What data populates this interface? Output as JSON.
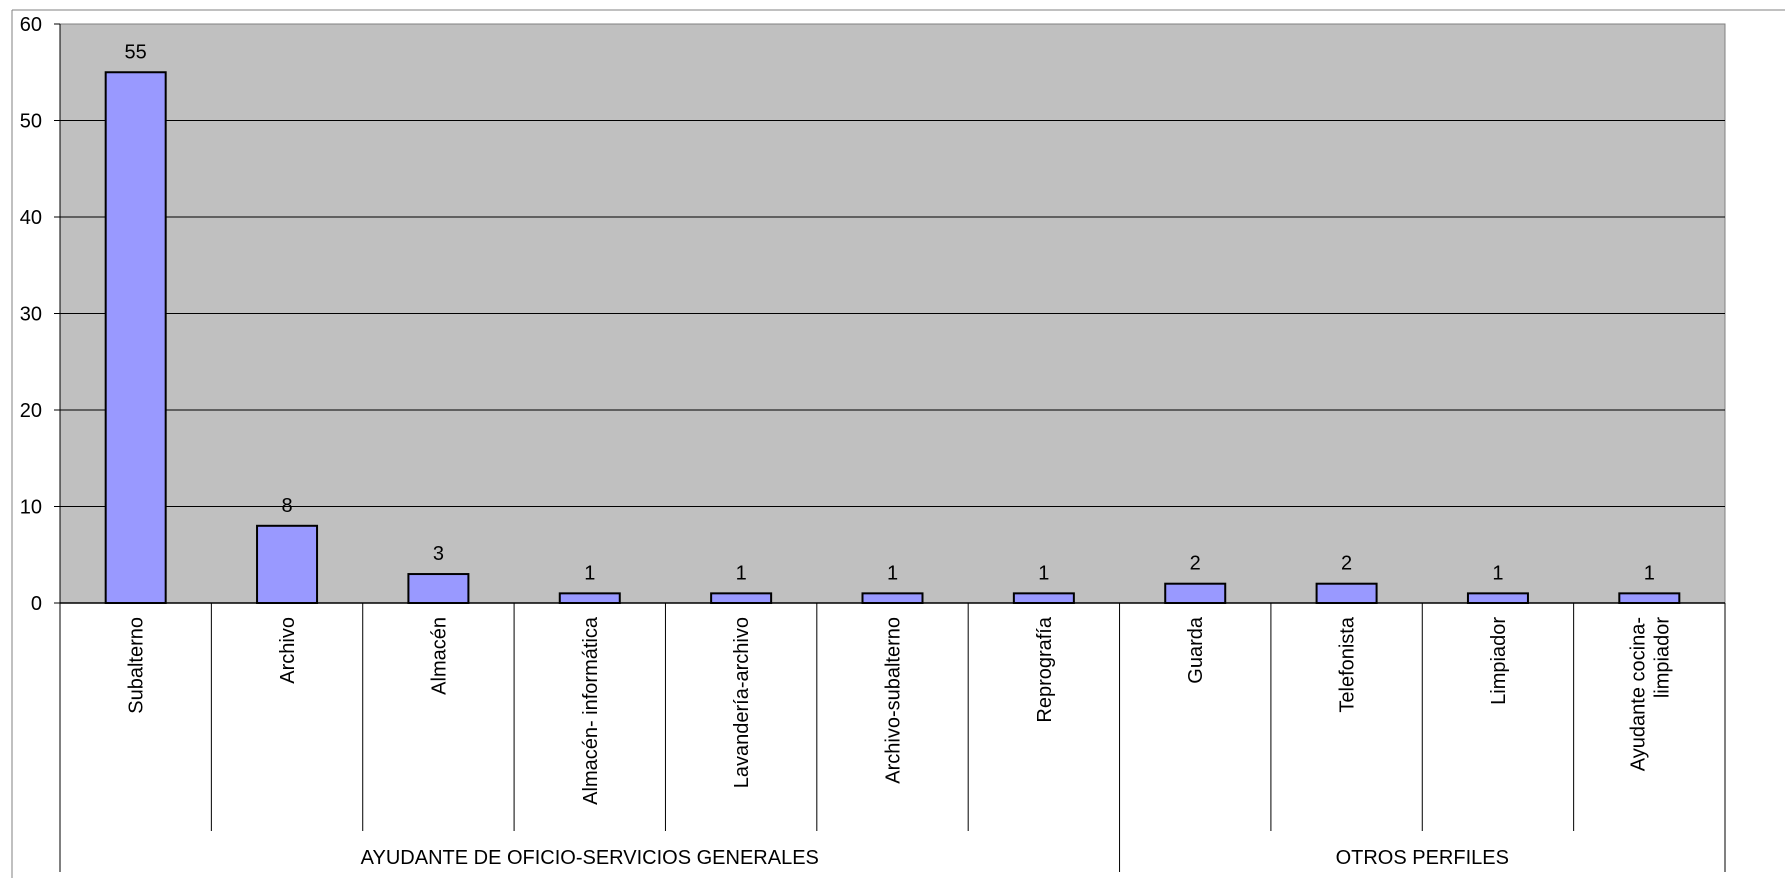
{
  "chart_data": {
    "type": "bar",
    "title": "",
    "xlabel": "",
    "ylabel": "",
    "ylim": [
      0,
      60
    ],
    "y_ticks": [
      0,
      10,
      20,
      30,
      40,
      50,
      60
    ],
    "grid": true,
    "legend": "none",
    "categories": [
      "Subalterno",
      "Archivo",
      "Almacén",
      "Almacén- informática",
      "Lavandería-archivo",
      "Archivo-subalterno",
      "Reprografía",
      "Guarda",
      "Telefonista",
      "Limpiador",
      "Ayudante cocina-limpiador"
    ],
    "category_label_lines": [
      [
        "Subalterno"
      ],
      [
        "Archivo"
      ],
      [
        "Almacén"
      ],
      [
        "Almacén- informática"
      ],
      [
        "Lavandería-archivo"
      ],
      [
        "Archivo-subalterno"
      ],
      [
        "Reprografía"
      ],
      [
        "Guarda"
      ],
      [
        "Telefonista"
      ],
      [
        "Limpiador"
      ],
      [
        "Ayudante cocina-",
        "limpiador"
      ]
    ],
    "values": [
      55,
      8,
      3,
      1,
      1,
      1,
      1,
      2,
      2,
      1,
      1
    ],
    "data_labels": [
      "55",
      "8",
      "3",
      "1",
      "1",
      "1",
      "1",
      "2",
      "2",
      "1",
      "1"
    ],
    "groups": [
      {
        "label": "AYUDANTE DE OFICIO-SERVICIOS GENERALES",
        "start": 0,
        "end": 6
      },
      {
        "label": "OTROS PERFILES",
        "start": 7,
        "end": 10
      }
    ],
    "colors": {
      "plot_background": "#c0c0c0",
      "bar_fill": "#9999ff",
      "bar_stroke": "#000000",
      "grid": "#000000"
    }
  }
}
